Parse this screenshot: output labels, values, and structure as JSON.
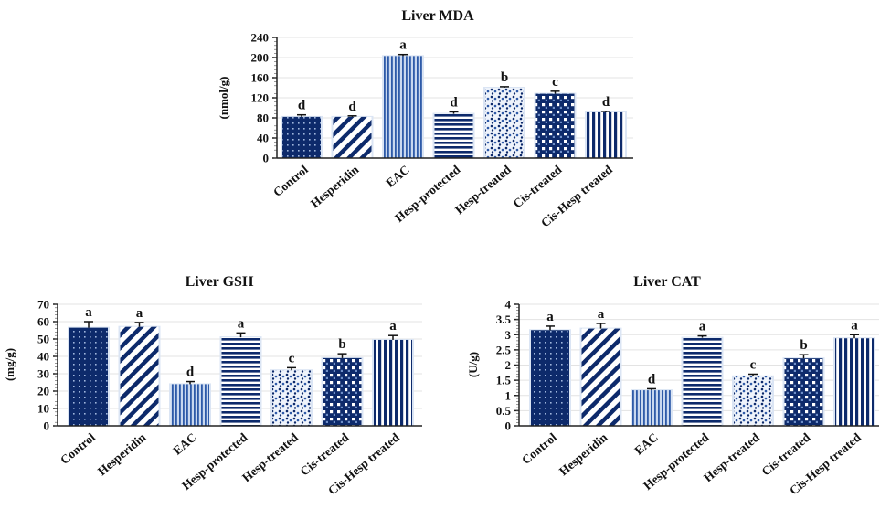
{
  "colors": {
    "navy": "#0d2a6b",
    "blue": "#2e5aa8",
    "light": "#c9d8ef",
    "grid": "#e3e3e3"
  },
  "chart_data": [
    {
      "id": "mda",
      "type": "bar",
      "title": "Liver MDA",
      "xlabel": "",
      "ylabel": "(nmol/g)",
      "ylim": [
        0,
        240
      ],
      "yticks": [
        0,
        40,
        80,
        120,
        160,
        200,
        240
      ],
      "grid": true,
      "categories": [
        "Control",
        "Hesperidin",
        "EAC",
        "Hesp-protected",
        "Hesp-treated",
        "Cis-treated",
        "Cis-Hesp treated"
      ],
      "values": [
        82,
        82,
        203,
        88,
        140,
        128,
        91
      ],
      "errors": [
        4,
        2,
        3,
        4,
        2,
        5,
        2
      ],
      "significance": [
        "d",
        "d",
        "a",
        "d",
        "b",
        "c",
        "d"
      ],
      "patterns": [
        "dots",
        "diag",
        "vlines-fine",
        "hlines",
        "speckle",
        "check",
        "vlines"
      ]
    },
    {
      "id": "gsh",
      "type": "bar",
      "title": "Liver GSH",
      "xlabel": "",
      "ylabel": "(mg/g)",
      "ylim": [
        0,
        70
      ],
      "yticks": [
        0,
        10,
        20,
        30,
        40,
        50,
        60,
        70
      ],
      "grid": true,
      "categories": [
        "Control",
        "Hesperidin",
        "EAC",
        "Hesp-protected",
        "Hesp-treated",
        "Cis-treated",
        "Cis-Hesp treated"
      ],
      "values": [
        56.5,
        57,
        24,
        51,
        32,
        39,
        49.5
      ],
      "errors": [
        3.5,
        2.5,
        1.5,
        2.5,
        1.5,
        2.5,
        2.5
      ],
      "significance": [
        "a",
        "a",
        "d",
        "a",
        "c",
        "b",
        "a"
      ],
      "patterns": [
        "dots",
        "diag",
        "vlines-fine",
        "hlines",
        "speckle",
        "check",
        "vlines"
      ]
    },
    {
      "id": "cat",
      "type": "bar",
      "title": "Liver CAT",
      "xlabel": "",
      "ylabel": "(U/g)",
      "ylim": [
        0,
        4
      ],
      "yticks": [
        0,
        0.5,
        1,
        1.5,
        2,
        2.5,
        3,
        3.5,
        4
      ],
      "grid": true,
      "categories": [
        "Control",
        "Hesperidin",
        "EAC",
        "Hesp-protected",
        "Hesp-treated",
        "Cis-treated",
        "Cis-Hesp treated"
      ],
      "values": [
        3.15,
        3.2,
        1.17,
        2.9,
        1.63,
        2.22,
        2.88
      ],
      "errors": [
        0.13,
        0.17,
        0.05,
        0.06,
        0.07,
        0.12,
        0.12
      ],
      "significance": [
        "a",
        "a",
        "d",
        "a",
        "c",
        "b",
        "a"
      ],
      "patterns": [
        "dots",
        "diag",
        "vlines-fine",
        "hlines",
        "speckle",
        "check",
        "vlines"
      ]
    }
  ]
}
